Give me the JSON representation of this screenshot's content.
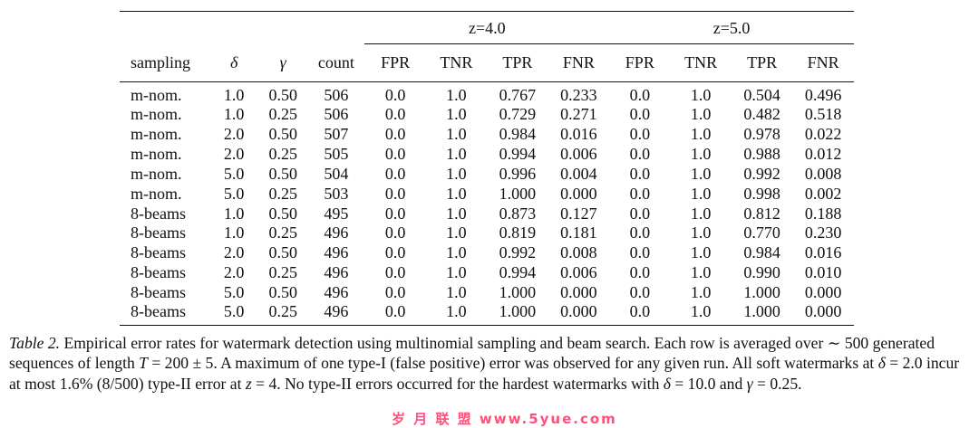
{
  "table": {
    "groups": [
      "z=4.0",
      "z=5.0"
    ],
    "headers": [
      "sampling",
      "δ",
      "γ",
      "count",
      "FPR",
      "TNR",
      "TPR",
      "FNR",
      "FPR",
      "TNR",
      "TPR",
      "FNR"
    ],
    "rows": [
      [
        "m-nom.",
        "1.0",
        "0.50",
        "506",
        "0.0",
        "1.0",
        "0.767",
        "0.233",
        "0.0",
        "1.0",
        "0.504",
        "0.496"
      ],
      [
        "m-nom.",
        "1.0",
        "0.25",
        "506",
        "0.0",
        "1.0",
        "0.729",
        "0.271",
        "0.0",
        "1.0",
        "0.482",
        "0.518"
      ],
      [
        "m-nom.",
        "2.0",
        "0.50",
        "507",
        "0.0",
        "1.0",
        "0.984",
        "0.016",
        "0.0",
        "1.0",
        "0.978",
        "0.022"
      ],
      [
        "m-nom.",
        "2.0",
        "0.25",
        "505",
        "0.0",
        "1.0",
        "0.994",
        "0.006",
        "0.0",
        "1.0",
        "0.988",
        "0.012"
      ],
      [
        "m-nom.",
        "5.0",
        "0.50",
        "504",
        "0.0",
        "1.0",
        "0.996",
        "0.004",
        "0.0",
        "1.0",
        "0.992",
        "0.008"
      ],
      [
        "m-nom.",
        "5.0",
        "0.25",
        "503",
        "0.0",
        "1.0",
        "1.000",
        "0.000",
        "0.0",
        "1.0",
        "0.998",
        "0.002"
      ],
      [
        "8-beams",
        "1.0",
        "0.50",
        "495",
        "0.0",
        "1.0",
        "0.873",
        "0.127",
        "0.0",
        "1.0",
        "0.812",
        "0.188"
      ],
      [
        "8-beams",
        "1.0",
        "0.25",
        "496",
        "0.0",
        "1.0",
        "0.819",
        "0.181",
        "0.0",
        "1.0",
        "0.770",
        "0.230"
      ],
      [
        "8-beams",
        "2.0",
        "0.50",
        "496",
        "0.0",
        "1.0",
        "0.992",
        "0.008",
        "0.0",
        "1.0",
        "0.984",
        "0.016"
      ],
      [
        "8-beams",
        "2.0",
        "0.25",
        "496",
        "0.0",
        "1.0",
        "0.994",
        "0.006",
        "0.0",
        "1.0",
        "0.990",
        "0.010"
      ],
      [
        "8-beams",
        "5.0",
        "0.50",
        "496",
        "0.0",
        "1.0",
        "1.000",
        "0.000",
        "0.0",
        "1.0",
        "1.000",
        "0.000"
      ],
      [
        "8-beams",
        "5.0",
        "0.25",
        "496",
        "0.0",
        "1.0",
        "1.000",
        "0.000",
        "0.0",
        "1.0",
        "1.000",
        "0.000"
      ]
    ]
  },
  "caption": {
    "label": "Table 2.",
    "s1": "Empirical error rates for watermark detection using multinomial sampling and beam search. Each row is averaged over ∼ 500 generated sequences of length ",
    "m1": "T",
    "s2": " = 200 ± 5. A maximum of one type-I (false positive) error was observed for any given run. All soft watermarks at ",
    "m2": "δ",
    "s3": " = 2.0 incur at most 1.6% (8/500) type-II error at ",
    "m3": "z",
    "s4": " = 4. No type-II errors occurred for the hardest watermarks with ",
    "m4": "δ",
    "s5": " = 10.0 and ",
    "m5": "γ",
    "s6": " = 0.25."
  },
  "watermark": "岁 月 联 盟   www.5yue.com"
}
